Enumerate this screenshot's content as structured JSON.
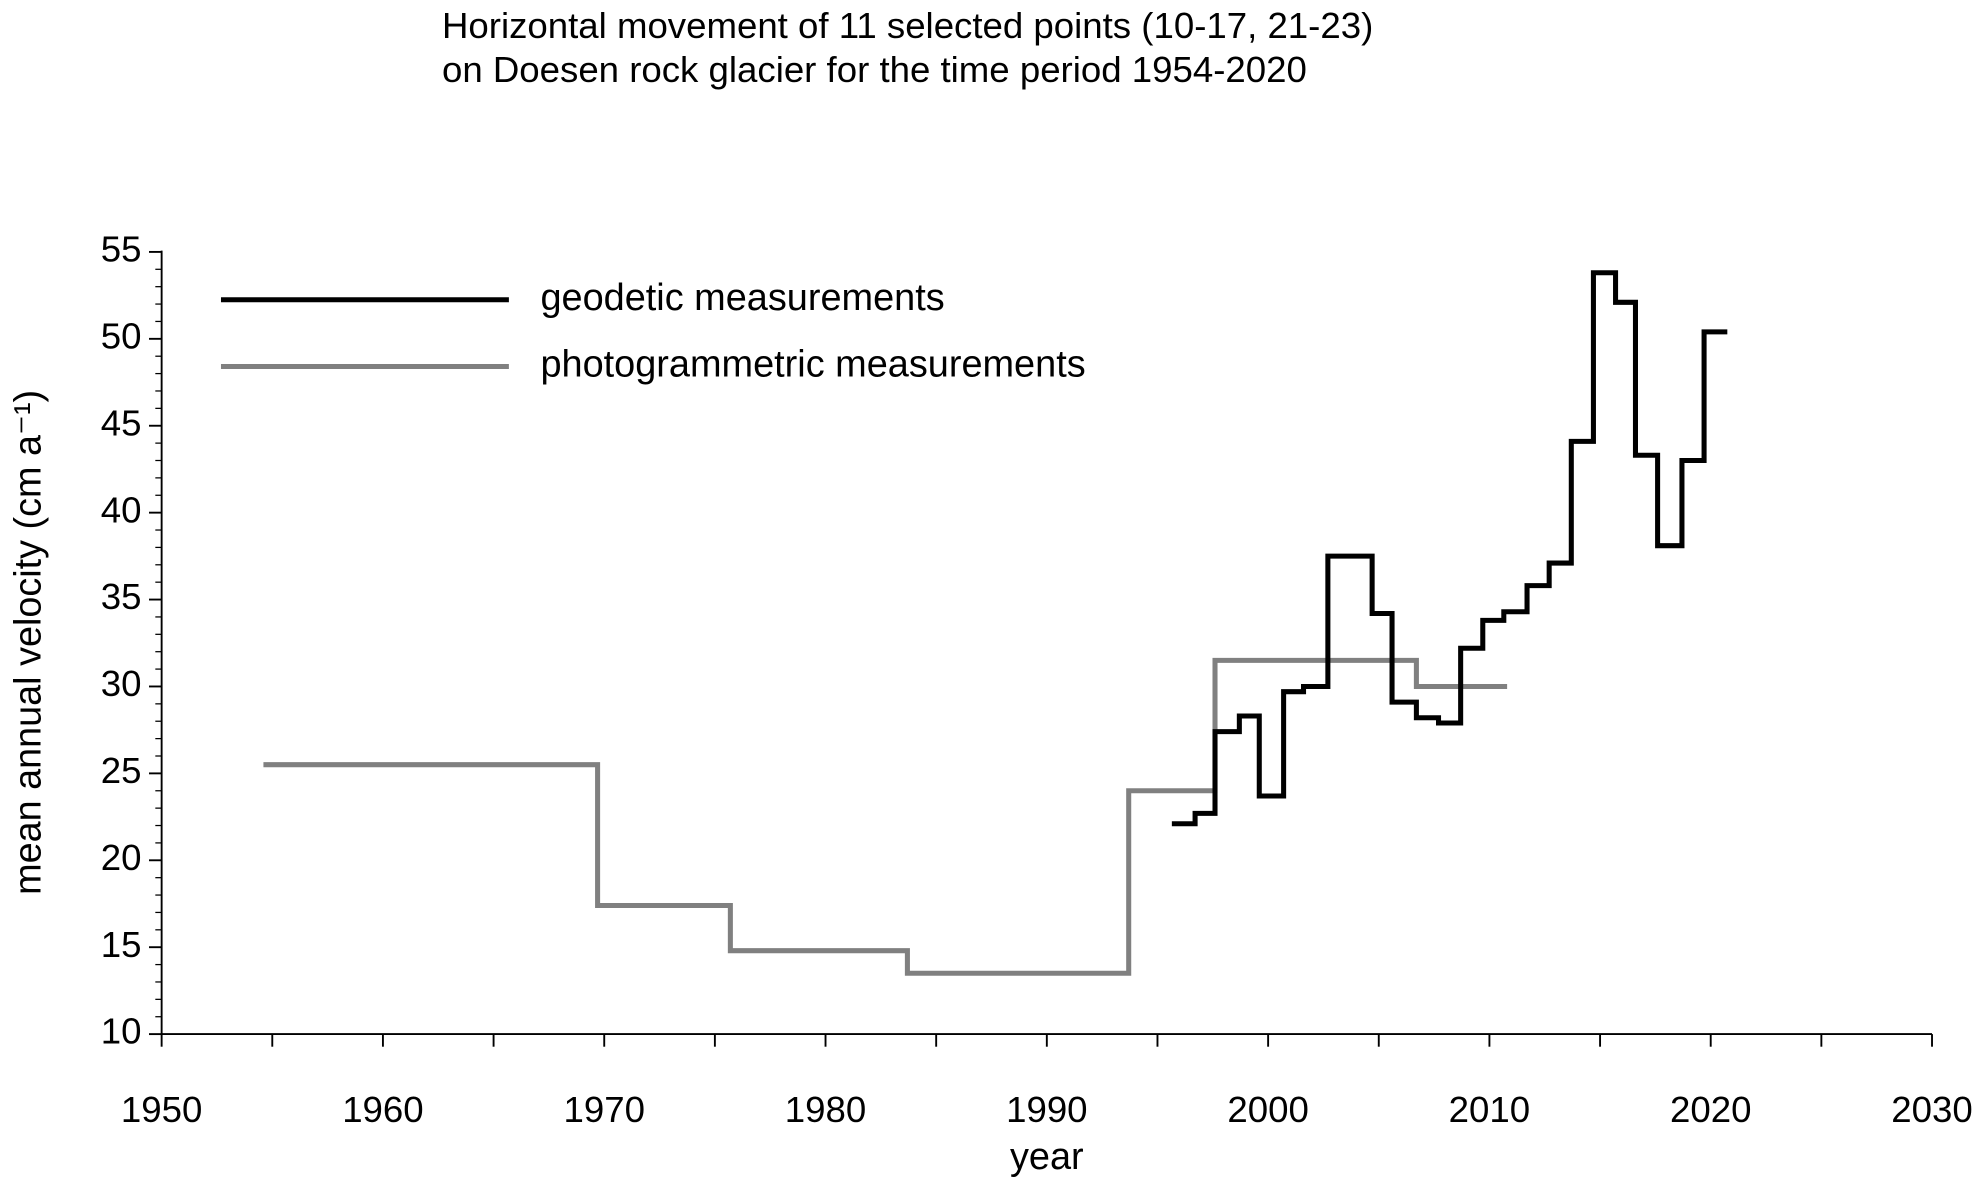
{
  "chart_data": {
    "type": "step",
    "title": [
      "Horizontal movement of 11 selected points (10-17, 21-23)",
      "on Doesen rock glacier for the time period 1954-2020"
    ],
    "xlabel": "year",
    "ylabel": "mean annual velocity (cm a⁻¹)",
    "xlim": [
      1950,
      2030
    ],
    "xticks": [
      1950,
      1960,
      1970,
      1980,
      1990,
      2000,
      2010,
      2020,
      2030
    ],
    "ylim": [
      10,
      55
    ],
    "yticks": [
      10,
      15,
      20,
      25,
      30,
      35,
      40,
      45,
      50,
      55
    ],
    "legend": "upper left",
    "series": [
      {
        "name": "photogrammetric measurements",
        "color": "#808080",
        "x": [
          1954.6,
          1969.7,
          1975.7,
          1983.7,
          1993.7,
          1997.6,
          2006.7,
          2010.8
        ],
        "values": [
          25.5,
          17.4,
          14.8,
          13.5,
          24.0,
          31.5,
          30.0,
          30.0
        ]
      },
      {
        "name": "geodetic measurements",
        "color": "#000000",
        "x": [
          1995.65,
          1996.7,
          1997.6,
          1998.7,
          1999.6,
          2000.7,
          2001.6,
          2002.7,
          2004.7,
          2005.6,
          2006.7,
          2007.7,
          2008.7,
          2009.7,
          2010.65,
          2011.7,
          2012.7,
          2013.7,
          2014.7,
          2015.7,
          2016.6,
          2017.6,
          2018.7,
          2019.7,
          2020.75
        ],
        "values": [
          22.1,
          22.7,
          27.4,
          28.3,
          23.7,
          29.7,
          30.0,
          37.5,
          34.2,
          29.1,
          28.2,
          27.9,
          32.2,
          33.8,
          34.3,
          35.8,
          37.1,
          44.1,
          53.8,
          52.1,
          43.3,
          38.1,
          43.0,
          50.4,
          50.4
        ]
      }
    ]
  }
}
